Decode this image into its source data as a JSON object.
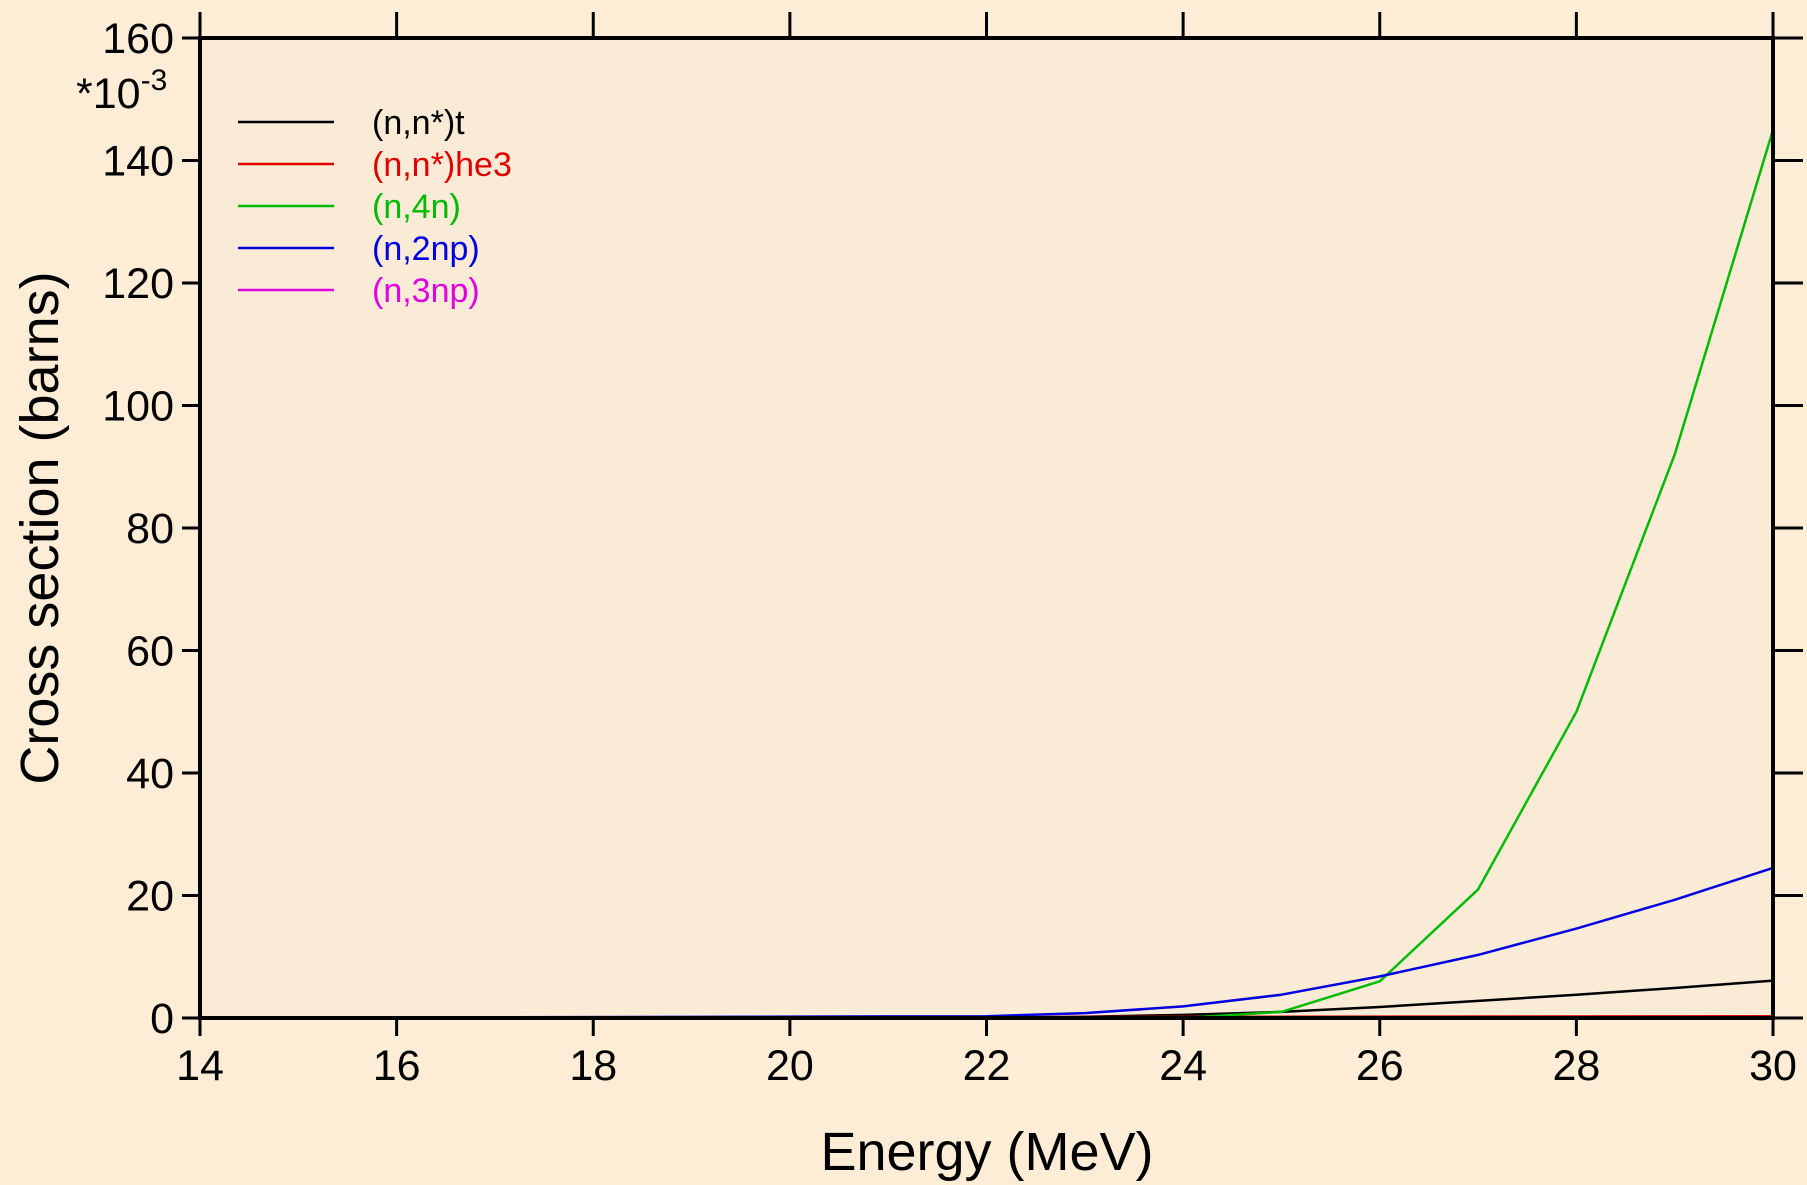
{
  "chart_data": {
    "type": "line",
    "xlabel": "Energy (MeV)",
    "ylabel": "Cross section (barns)",
    "y_multiplier": "*10",
    "y_multiplier_exp": "-3",
    "xlim": [
      14,
      30
    ],
    "ylim": [
      0,
      160
    ],
    "x_ticks": [
      14,
      16,
      18,
      20,
      22,
      24,
      26,
      28,
      30
    ],
    "x_tick_labels": [
      "14",
      "16",
      "18",
      "20",
      "22",
      "24",
      "26",
      "28",
      "30"
    ],
    "y_ticks": [
      0,
      20,
      40,
      60,
      80,
      100,
      120,
      140,
      160
    ],
    "y_tick_labels": [
      "0",
      "20",
      "40",
      "60",
      "80",
      "100",
      "120",
      "140",
      "160"
    ],
    "grid": false,
    "legend_position": "top-left",
    "background": "#fdedd6",
    "plot_background": "#faebd7",
    "series": [
      {
        "name": "(n,n*)t",
        "color": "#000000",
        "x": [
          14,
          22,
          23,
          24,
          25,
          26,
          27,
          28,
          29,
          30,
          30
        ],
        "y": [
          0,
          0,
          0.2,
          0.5,
          1.0,
          1.8,
          2.8,
          3.8,
          4.9,
          6.1,
          0
        ]
      },
      {
        "name": "(n,n*)he3",
        "color": "#e00000",
        "x": [
          14,
          30,
          30
        ],
        "y": [
          0,
          0.3,
          0
        ]
      },
      {
        "name": "(n,4n)",
        "color": "#00bb00",
        "x": [
          14,
          24,
          25,
          26,
          27,
          28,
          29,
          30,
          30
        ],
        "y": [
          0,
          0,
          1.0,
          6.0,
          21.0,
          50.0,
          92.0,
          145.0,
          0
        ]
      },
      {
        "name": "(n,2np)",
        "color": "#0000e0",
        "x": [
          14,
          22,
          23,
          24,
          25,
          26,
          27,
          28,
          29,
          30,
          30
        ],
        "y": [
          0,
          0.3,
          0.8,
          1.9,
          3.8,
          6.8,
          10.3,
          14.6,
          19.3,
          24.5,
          0
        ]
      },
      {
        "name": "(n,3np)",
        "color": "#e000e0",
        "x": [
          14,
          30,
          30
        ],
        "y": [
          0,
          0.1,
          0
        ]
      }
    ]
  }
}
